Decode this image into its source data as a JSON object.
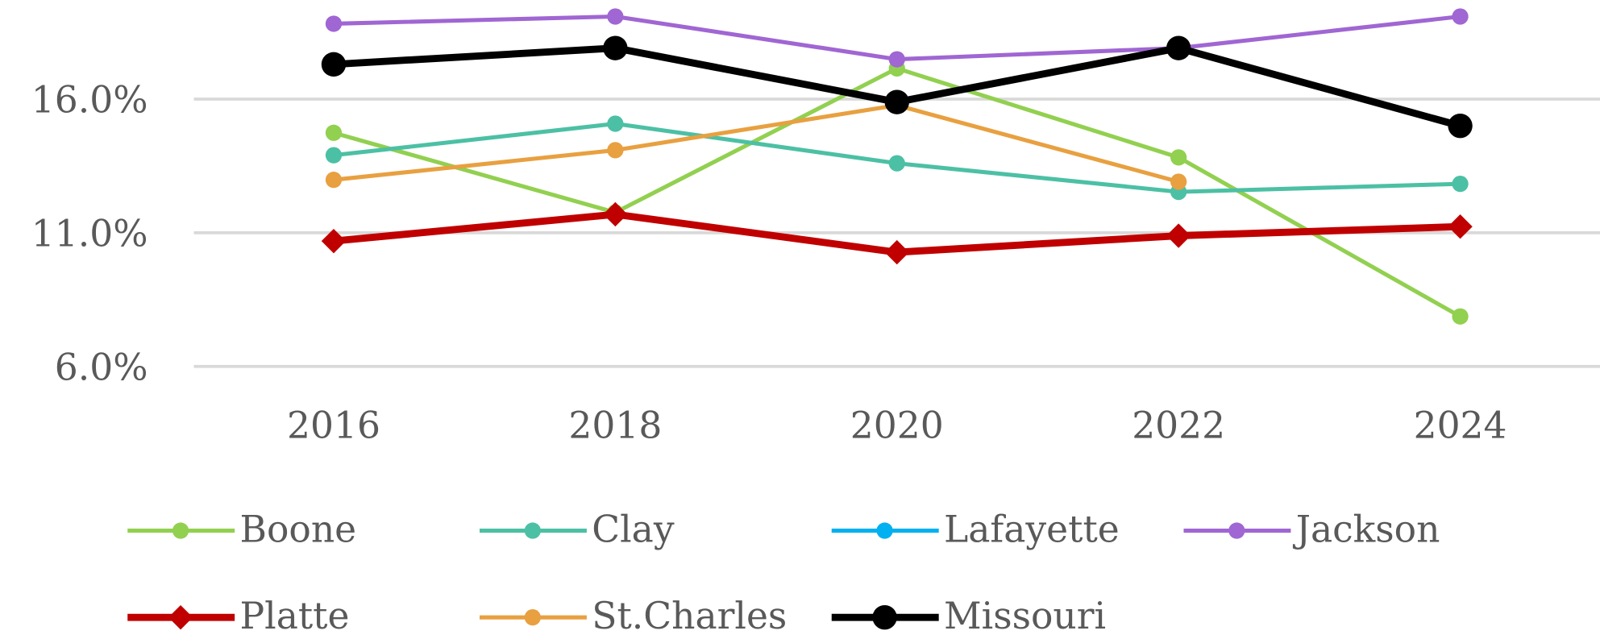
{
  "chart_data": {
    "type": "line",
    "categories": [
      "2016",
      "2018",
      "2020",
      "2022",
      "2024"
    ],
    "series": [
      {
        "name": "Boone",
        "color": "#92d050",
        "marker": "circle",
        "values": [
          14.74,
          11.76,
          17.15,
          13.82,
          7.87
        ]
      },
      {
        "name": "Clay",
        "color": "#4cc0a4",
        "marker": "circle",
        "values": [
          13.9,
          15.08,
          13.6,
          12.53,
          12.83
        ]
      },
      {
        "name": "Lafayette",
        "color": "#00b0f0",
        "marker": "circle",
        "values": [
          null,
          null,
          null,
          null,
          null
        ]
      },
      {
        "name": "Jackson",
        "color": "#a066d3",
        "marker": "circle",
        "values": [
          18.82,
          19.09,
          17.49,
          17.91,
          19.09
        ]
      },
      {
        "name": "Platte",
        "color": "#c00000",
        "marker": "diamond",
        "values": [
          10.69,
          11.69,
          10.27,
          10.89,
          11.23
        ]
      },
      {
        "name": "St.Charles",
        "color": "#e8a040",
        "marker": "circle",
        "values": [
          12.98,
          14.09,
          15.77,
          12.91,
          null
        ]
      },
      {
        "name": "Missouri",
        "color": "#000000",
        "marker": "circle",
        "values": [
          17.3,
          17.91,
          15.89,
          17.91,
          15.0
        ]
      }
    ],
    "ylim": [
      6,
      19.7
    ],
    "yticks": [
      {
        "value": 6,
        "label": "6.0%"
      },
      {
        "value": 11,
        "label": "11.0%"
      },
      {
        "value": 16,
        "label": "16.0%"
      }
    ],
    "grid": true
  }
}
